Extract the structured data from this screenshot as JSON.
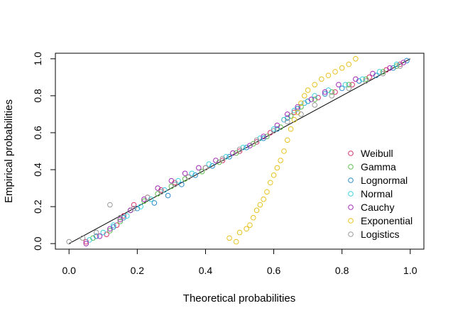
{
  "chart_data": {
    "type": "scatter",
    "title": "",
    "xlabel": "Theoretical probabilities",
    "ylabel": "Empirical probabilities",
    "xlim": [
      -0.04,
      1.04
    ],
    "ylim": [
      -0.03,
      1.03
    ],
    "xticks": [
      "0.0",
      "0.2",
      "0.4",
      "0.6",
      "0.8",
      "1.0"
    ],
    "yticks": [
      "0.0",
      "0.2",
      "0.4",
      "0.6",
      "0.8",
      "1.0"
    ],
    "reference_line": {
      "from": [
        0,
        0
      ],
      "to": [
        1,
        1
      ],
      "color": "#000000"
    },
    "grid": false,
    "legend_position": "bottom-right",
    "marker": "open-circle",
    "series": [
      {
        "name": "Weibull",
        "color": "#D7336C",
        "x": [
          0.05,
          0.11,
          0.14,
          0.16,
          0.19,
          0.23,
          0.27,
          0.31,
          0.35,
          0.4,
          0.45,
          0.5,
          0.55,
          0.59,
          0.63,
          0.66,
          0.69,
          0.73,
          0.78,
          0.83,
          0.88,
          0.93,
          0.97
        ],
        "y": [
          0.01,
          0.05,
          0.1,
          0.15,
          0.21,
          0.25,
          0.29,
          0.33,
          0.36,
          0.41,
          0.45,
          0.5,
          0.55,
          0.6,
          0.67,
          0.71,
          0.76,
          0.79,
          0.82,
          0.86,
          0.9,
          0.94,
          0.97
        ]
      },
      {
        "name": "Gamma",
        "color": "#5BBE4D",
        "x": [
          0.07,
          0.12,
          0.15,
          0.18,
          0.22,
          0.26,
          0.3,
          0.34,
          0.39,
          0.44,
          0.49,
          0.54,
          0.58,
          0.62,
          0.65,
          0.68,
          0.72,
          0.77,
          0.82,
          0.87,
          0.92,
          0.96
        ],
        "y": [
          0.03,
          0.07,
          0.12,
          0.18,
          0.23,
          0.27,
          0.31,
          0.35,
          0.39,
          0.44,
          0.49,
          0.54,
          0.58,
          0.63,
          0.69,
          0.74,
          0.78,
          0.82,
          0.86,
          0.89,
          0.93,
          0.96
        ]
      },
      {
        "name": "Lognormal",
        "color": "#2A8BC8",
        "x": [
          0.08,
          0.13,
          0.16,
          0.2,
          0.25,
          0.29,
          0.33,
          0.37,
          0.42,
          0.47,
          0.52,
          0.57,
          0.61,
          0.64,
          0.67,
          0.7,
          0.75,
          0.8,
          0.85,
          0.9,
          0.95,
          0.99
        ],
        "y": [
          0.04,
          0.09,
          0.14,
          0.19,
          0.22,
          0.26,
          0.32,
          0.37,
          0.42,
          0.47,
          0.52,
          0.57,
          0.62,
          0.68,
          0.73,
          0.77,
          0.81,
          0.84,
          0.88,
          0.91,
          0.95,
          0.99
        ]
      },
      {
        "name": "Normal",
        "color": "#3CCFDE",
        "x": [
          0.06,
          0.1,
          0.13,
          0.17,
          0.21,
          0.24,
          0.28,
          0.32,
          0.36,
          0.41,
          0.46,
          0.51,
          0.56,
          0.6,
          0.63,
          0.66,
          0.69,
          0.72,
          0.76,
          0.81,
          0.86,
          0.91,
          0.96
        ],
        "y": [
          0.02,
          0.06,
          0.1,
          0.15,
          0.2,
          0.24,
          0.29,
          0.34,
          0.38,
          0.43,
          0.47,
          0.52,
          0.57,
          0.62,
          0.67,
          0.72,
          0.76,
          0.8,
          0.83,
          0.86,
          0.89,
          0.93,
          0.97
        ]
      },
      {
        "name": "Cauchy",
        "color": "#A32BB7",
        "x": [
          0.05,
          0.09,
          0.12,
          0.15,
          0.18,
          0.22,
          0.26,
          0.3,
          0.34,
          0.38,
          0.43,
          0.48,
          0.53,
          0.57,
          0.61,
          0.64,
          0.67,
          0.71,
          0.75,
          0.79,
          0.84,
          0.89,
          0.94,
          0.98
        ],
        "y": [
          0.0,
          0.04,
          0.08,
          0.13,
          0.18,
          0.24,
          0.3,
          0.34,
          0.38,
          0.41,
          0.45,
          0.49,
          0.53,
          0.58,
          0.64,
          0.7,
          0.74,
          0.78,
          0.82,
          0.86,
          0.89,
          0.92,
          0.95,
          0.98
        ]
      },
      {
        "name": "Exponential",
        "color": "#E8C21F",
        "x": [
          0.47,
          0.49,
          0.5,
          0.52,
          0.53,
          0.54,
          0.55,
          0.56,
          0.57,
          0.58,
          0.59,
          0.6,
          0.61,
          0.62,
          0.63,
          0.64,
          0.65,
          0.66,
          0.67,
          0.68,
          0.69,
          0.7,
          0.72,
          0.74,
          0.76,
          0.78,
          0.8,
          0.82,
          0.84
        ],
        "y": [
          0.03,
          0.01,
          0.06,
          0.08,
          0.1,
          0.14,
          0.18,
          0.21,
          0.24,
          0.28,
          0.33,
          0.37,
          0.41,
          0.45,
          0.5,
          0.56,
          0.62,
          0.67,
          0.71,
          0.76,
          0.8,
          0.83,
          0.86,
          0.89,
          0.91,
          0.93,
          0.95,
          0.97,
          1.0
        ]
      },
      {
        "name": "Logistics",
        "color": "#9A9A9A",
        "x": [
          0.0,
          0.04,
          0.08,
          0.12,
          0.15,
          0.19,
          0.23,
          0.27,
          0.31,
          0.35,
          0.4,
          0.45,
          0.5,
          0.55,
          0.6,
          0.64,
          0.68,
          0.72,
          0.77,
          0.82,
          0.87,
          0.92,
          0.97
        ],
        "y": [
          0.01,
          0.03,
          0.06,
          0.21,
          0.14,
          0.19,
          0.25,
          0.28,
          0.32,
          0.36,
          0.41,
          0.46,
          0.51,
          0.56,
          0.61,
          0.66,
          0.7,
          0.75,
          0.8,
          0.84,
          0.88,
          0.92,
          0.96
        ]
      }
    ]
  }
}
